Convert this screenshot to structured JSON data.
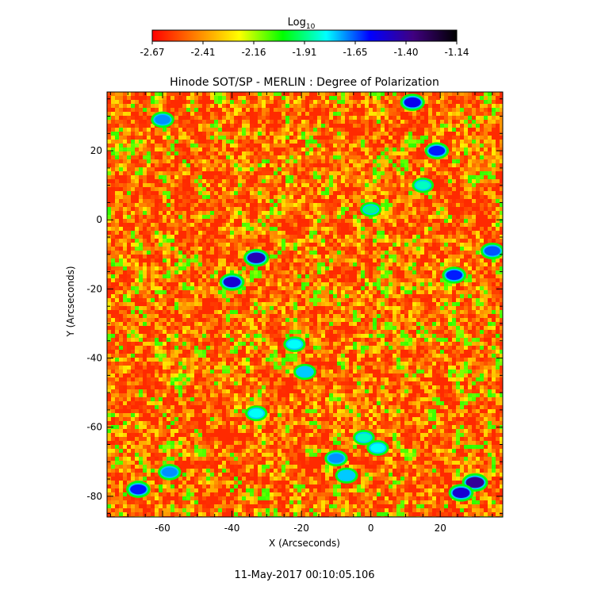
{
  "chart_data": {
    "type": "heatmap",
    "title": "Hinode SOT/SP - MERLIN : Degree of Polarization",
    "xlabel": "X (Arcseconds)",
    "ylabel": "Y (Arcseconds)",
    "xlim": [
      -76,
      38
    ],
    "ylim": [
      -86,
      37
    ],
    "x_ticks": [
      -60,
      -40,
      -20,
      0,
      20
    ],
    "y_ticks": [
      -80,
      -60,
      -40,
      -20,
      0,
      20
    ],
    "colorbar": {
      "label_base": "Log",
      "label_subscript": "10",
      "range": [
        -2.67,
        -1.14
      ],
      "ticks": [
        "-2.67",
        "-2.41",
        "-2.16",
        "-1.91",
        "-1.65",
        "-1.40",
        "-1.14"
      ],
      "colors": [
        "#ff0000",
        "#ff8000",
        "#ffff00",
        "#00ff00",
        "#00ffff",
        "#0000ff",
        "#400080",
        "#000000"
      ]
    },
    "footer": "11-May-2017 00:10:05.106",
    "features": [
      {
        "x": -33,
        "y": -11,
        "value": -1.45
      },
      {
        "x": -40,
        "y": -18,
        "value": -1.5
      },
      {
        "x": 30,
        "y": -76,
        "value": -1.4
      },
      {
        "x": 26,
        "y": -79,
        "value": -1.5
      },
      {
        "x": 12,
        "y": 34,
        "value": -1.55
      },
      {
        "x": -60,
        "y": 29,
        "value": -1.7
      },
      {
        "x": 19,
        "y": 20,
        "value": -1.6
      },
      {
        "x": 24,
        "y": -16,
        "value": -1.6
      },
      {
        "x": 35,
        "y": -9,
        "value": -1.65
      },
      {
        "x": -67,
        "y": -78,
        "value": -1.6
      },
      {
        "x": -58,
        "y": -73,
        "value": -1.7
      },
      {
        "x": -10,
        "y": -69,
        "value": -1.7
      },
      {
        "x": -7,
        "y": -74,
        "value": -1.75
      },
      {
        "x": -22,
        "y": -36,
        "value": -1.8
      },
      {
        "x": -19,
        "y": -44,
        "value": -1.75
      },
      {
        "x": -33,
        "y": -56,
        "value": -1.8
      },
      {
        "x": 2,
        "y": -66,
        "value": -1.8
      },
      {
        "x": 15,
        "y": 10,
        "value": -1.85
      },
      {
        "x": 0,
        "y": 3,
        "value": -1.9
      },
      {
        "x": -2,
        "y": -63,
        "value": -1.85
      }
    ]
  }
}
